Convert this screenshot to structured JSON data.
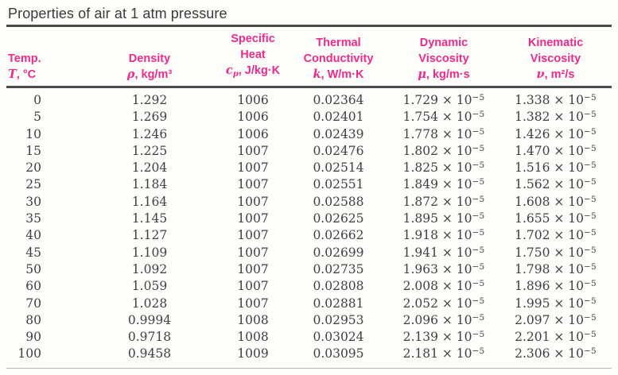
{
  "title": "Properties of air at 1 atm pressure",
  "colors": {
    "accent_pink": "#ee2a8c",
    "title_text": "#3a3a3c",
    "data_text": "#3d4046",
    "rule_dark": "#4b4b4d",
    "rule_light": "#b5b5b5",
    "background": "#fdfdfa"
  },
  "table": {
    "columns": [
      {
        "key": "temp",
        "group": "",
        "name": "Temp.",
        "symbol": "T",
        "symbol_sub": "",
        "unit": ", °C"
      },
      {
        "key": "density",
        "group": "",
        "name": "Density",
        "symbol": "ρ",
        "symbol_sub": "",
        "unit": ", kg/m³"
      },
      {
        "key": "specific-heat",
        "group": "Specific",
        "name": "Heat",
        "symbol": "c",
        "symbol_sub": "p",
        "unit": ", J/kg·K"
      },
      {
        "key": "thermal-conductivity",
        "group": "Thermal",
        "name": "Conductivity",
        "symbol": "k",
        "symbol_sub": "",
        "unit": ", W/m·K"
      },
      {
        "key": "dynamic-viscosity",
        "group": "Dynamic",
        "name": "Viscosity",
        "symbol": "μ",
        "symbol_sub": "",
        "unit": ", kg/m·s"
      },
      {
        "key": "kinematic-viscosity",
        "group": "Kinematic",
        "name": "Viscosity",
        "symbol": "ν",
        "symbol_sub": "",
        "unit": ", m²/s"
      }
    ],
    "scientific_suffix": {
      "times": "× 10",
      "exponent": "−5"
    },
    "scientific_columns": [
      4,
      5
    ],
    "rows": [
      [
        "0",
        "1.292",
        "1006",
        "0.02364",
        "1.729",
        "1.338"
      ],
      [
        "5",
        "1.269",
        "1006",
        "0.02401",
        "1.754",
        "1.382"
      ],
      [
        "10",
        "1.246",
        "1006",
        "0.02439",
        "1.778",
        "1.426"
      ],
      [
        "15",
        "1.225",
        "1007",
        "0.02476",
        "1.802",
        "1.470"
      ],
      [
        "20",
        "1.204",
        "1007",
        "0.02514",
        "1.825",
        "1.516"
      ],
      [
        "25",
        "1.184",
        "1007",
        "0.02551",
        "1.849",
        "1.562"
      ],
      [
        "30",
        "1.164",
        "1007",
        "0.02588",
        "1.872",
        "1.608"
      ],
      [
        "35",
        "1.145",
        "1007",
        "0.02625",
        "1.895",
        "1.655"
      ],
      [
        "40",
        "1.127",
        "1007",
        "0.02662",
        "1.918",
        "1.702"
      ],
      [
        "45",
        "1.109",
        "1007",
        "0.02699",
        "1.941",
        "1.750"
      ],
      [
        "50",
        "1.092",
        "1007",
        "0.02735",
        "1.963",
        "1.798"
      ],
      [
        "60",
        "1.059",
        "1007",
        "0.02808",
        "2.008",
        "1.896"
      ],
      [
        "70",
        "1.028",
        "1007",
        "0.02881",
        "2.052",
        "1.995"
      ],
      [
        "80",
        "0.9994",
        "1008",
        "0.02953",
        "2.096",
        "2.097"
      ],
      [
        "90",
        "0.9718",
        "1008",
        "0.03024",
        "2.139",
        "2.201"
      ],
      [
        "100",
        "0.9458",
        "1009",
        "0.03095",
        "2.181",
        "2.306"
      ]
    ]
  }
}
